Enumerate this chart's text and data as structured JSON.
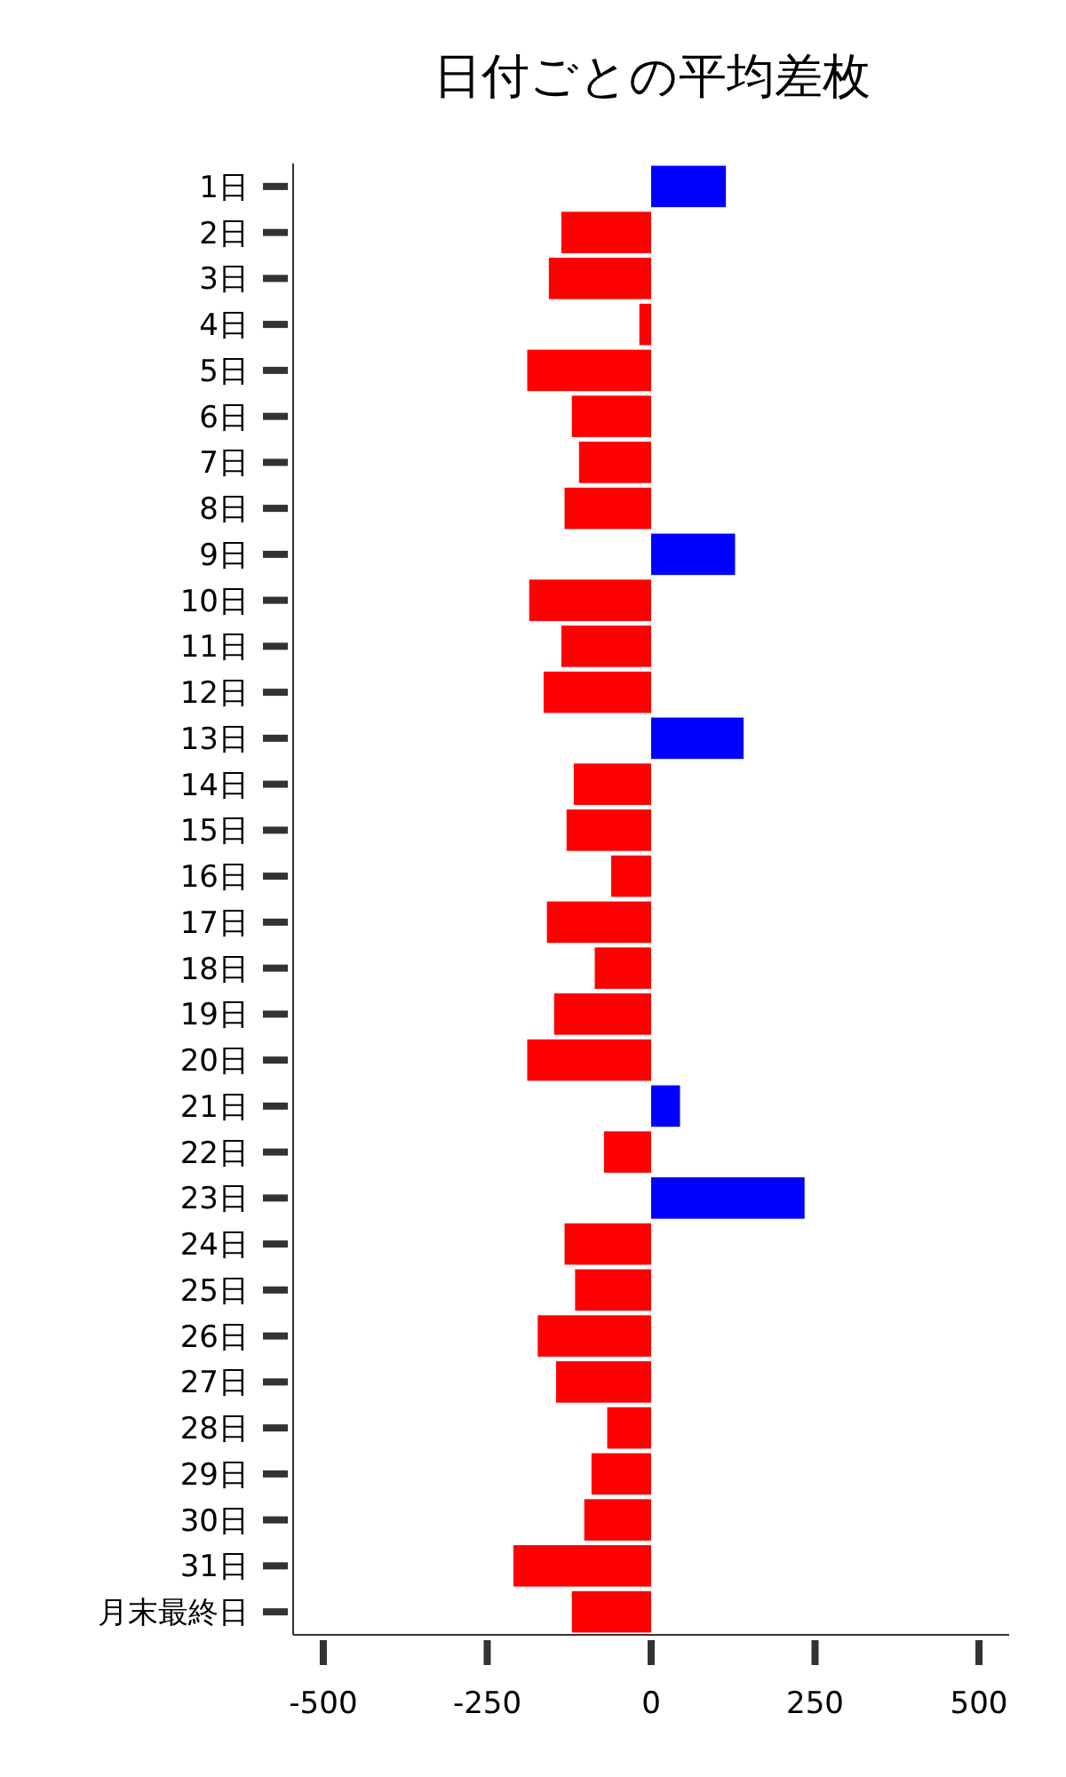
{
  "chart_data": {
    "type": "bar",
    "orientation": "horizontal",
    "title": "日付ごとの平均差枚",
    "categories": [
      "1日",
      "2日",
      "3日",
      "4日",
      "5日",
      "6日",
      "7日",
      "8日",
      "9日",
      "10日",
      "11日",
      "12日",
      "13日",
      "14日",
      "15日",
      "16日",
      "17日",
      "18日",
      "19日",
      "20日",
      "21日",
      "22日",
      "23日",
      "24日",
      "25日",
      "26日",
      "27日",
      "28日",
      "29日",
      "30日",
      "31日",
      "月末最終日"
    ],
    "values": [
      114,
      -137,
      -156,
      -18,
      -189,
      -121,
      -110,
      -132,
      128,
      -186,
      -137,
      -164,
      141,
      -118,
      -129,
      -61,
      -159,
      -86,
      -148,
      -189,
      44,
      -72,
      234,
      -132,
      -116,
      -173,
      -145,
      -67,
      -91,
      -102,
      -210,
      -121
    ],
    "colors": [
      "#0000ff",
      "#ff0000",
      "#ff0000",
      "#ff0000",
      "#ff0000",
      "#ff0000",
      "#ff0000",
      "#ff0000",
      "#0000ff",
      "#ff0000",
      "#ff0000",
      "#ff0000",
      "#0000ff",
      "#ff0000",
      "#ff0000",
      "#ff0000",
      "#ff0000",
      "#ff0000",
      "#ff0000",
      "#ff0000",
      "#0000ff",
      "#ff0000",
      "#0000ff",
      "#ff0000",
      "#ff0000",
      "#ff0000",
      "#ff0000",
      "#ff0000",
      "#ff0000",
      "#ff0000",
      "#ff0000",
      "#ff0000"
    ],
    "xlim": [
      -546,
      546
    ],
    "xticks": [
      -500,
      -250,
      0,
      250,
      500
    ],
    "grid": false
  }
}
